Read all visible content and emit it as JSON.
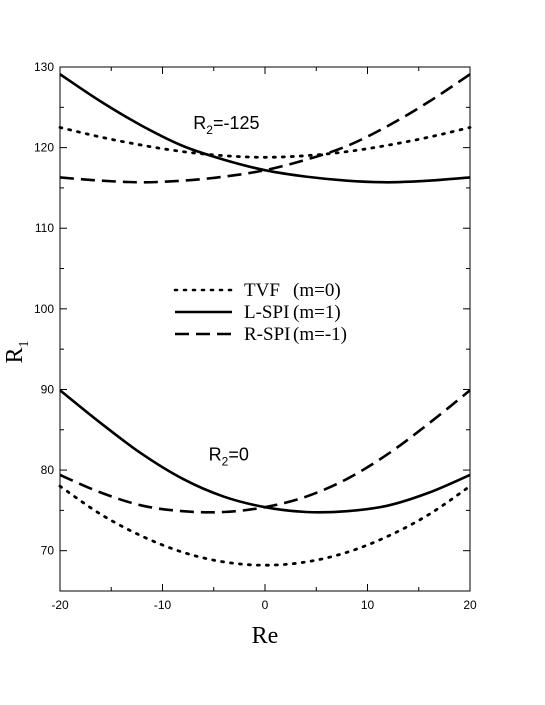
{
  "chart_data": {
    "type": "line",
    "xlabel": "Re",
    "ylabel": {
      "main": "R",
      "sub": "1"
    },
    "xlim": [
      -20,
      20
    ],
    "ylim": [
      65,
      130
    ],
    "xticks": [
      "-20",
      "-10",
      "0",
      "10",
      "20"
    ],
    "yticks": [
      "70",
      "80",
      "90",
      "100",
      "110",
      "120",
      "130"
    ],
    "grid": false,
    "legend_position": "center",
    "legend": [
      {
        "label": "TVF",
        "mode": "(m=0)",
        "style": "dotted"
      },
      {
        "label": "L-SPI",
        "mode": "(m=1)",
        "style": "solid"
      },
      {
        "label": "R-SPI",
        "mode": "(m=-1)",
        "style": "dashed"
      }
    ],
    "annotations": [
      {
        "main": "R",
        "sub": "2",
        "rest": "=-125",
        "x": -7,
        "y": 122.3
      },
      {
        "main": "R",
        "sub": "2",
        "rest": "=0",
        "x": -5.5,
        "y": 81.2
      }
    ],
    "curve_groups": [
      {
        "label": "R2=-125",
        "x": [
          -20,
          -16,
          -12,
          -8,
          -4,
          0,
          4,
          8,
          12,
          16,
          20
        ],
        "series": [
          {
            "name": "TVF",
            "style": "dotted",
            "y": [
              122.5,
              121.3,
              120.3,
              119.5,
              119.0,
              118.8,
              119.0,
              119.5,
              120.3,
              121.3,
              122.5
            ]
          },
          {
            "name": "L-SPI",
            "style": "solid",
            "y": [
              129.1,
              125.7,
              122.7,
              120.2,
              118.5,
              117.2,
              116.4,
              115.9,
              115.7,
              115.9,
              116.3
            ]
          },
          {
            "name": "R-SPI",
            "style": "dashed",
            "y": [
              116.3,
              115.9,
              115.7,
              115.9,
              116.4,
              117.2,
              118.5,
              120.2,
              122.7,
              125.7,
              129.1
            ]
          }
        ]
      },
      {
        "label": "R2=0",
        "x": [
          -20,
          -16,
          -12,
          -8,
          -4,
          0,
          4,
          8,
          12,
          16,
          20
        ],
        "series": [
          {
            "name": "TVF",
            "style": "dotted",
            "y": [
              78.0,
              74.5,
              71.8,
              69.8,
              68.6,
              68.2,
              68.6,
              69.8,
              71.8,
              74.5,
              78.0
            ]
          },
          {
            "name": "L-SPI",
            "style": "solid",
            "y": [
              89.9,
              85.8,
              82.0,
              78.9,
              76.7,
              75.4,
              74.8,
              74.9,
              75.6,
              77.2,
              79.4
            ]
          },
          {
            "name": "R-SPI",
            "style": "dashed",
            "y": [
              79.4,
              77.2,
              75.6,
              74.9,
              74.8,
              75.4,
              76.7,
              78.9,
              82.0,
              85.8,
              89.9
            ]
          }
        ]
      }
    ]
  }
}
